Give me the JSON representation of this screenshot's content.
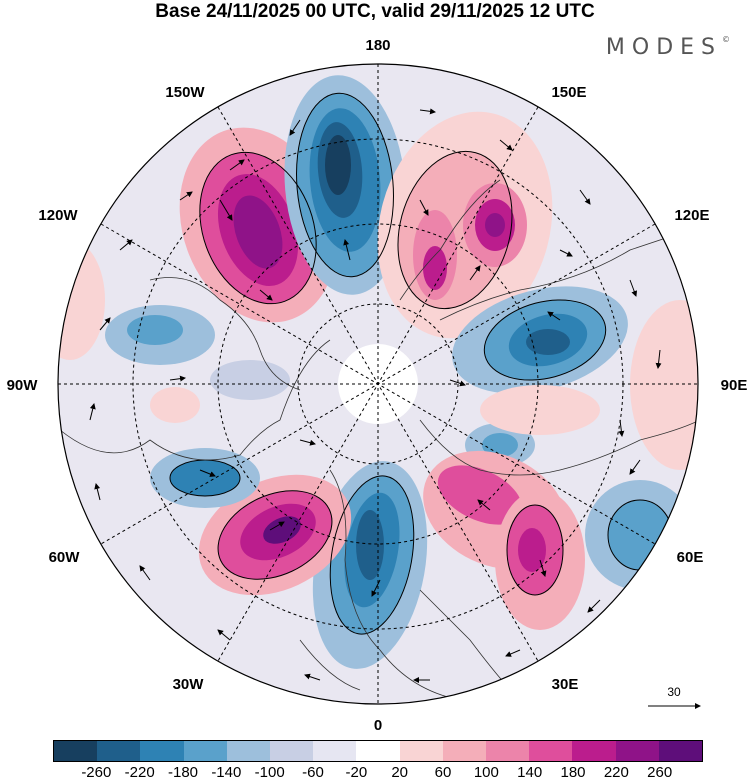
{
  "title": "Base 24/11/2025 00 UTC, valid 29/11/2025 12 UTC",
  "logo": "MODES",
  "logo_mark": "©",
  "lon_labels": {
    "l180": "180",
    "l150w": "150W",
    "l150e": "150E",
    "l120w": "120W",
    "l120e": "120E",
    "l90w": "90W",
    "l90e": "90E",
    "l60w": "60W",
    "l60e": "60E",
    "l30w": "30W",
    "l30e": "30E",
    "l0": "0"
  },
  "vector_scale": {
    "value": "30"
  },
  "colorbar": {
    "colors": [
      "#173f5f",
      "#1f5f8b",
      "#2e82b4",
      "#5aa1cb",
      "#9dbfdc",
      "#c8cfe4",
      "#e6e6f2",
      "#ffffff",
      "#f9d4d4",
      "#f4aeb9",
      "#ec84aa",
      "#df4e9c",
      "#bb1d8d",
      "#8f1388",
      "#5e0e7a"
    ],
    "ticks": [
      "-260",
      "-220",
      "-180",
      "-140",
      "-100",
      "-60",
      "-20",
      "20",
      "60",
      "100",
      "140",
      "180",
      "220",
      "260"
    ]
  },
  "chart_data": {
    "type": "polar-stereographic anomaly map",
    "projection": "north polar",
    "field_range": [
      -260,
      260
    ],
    "contour_levels": [
      -260,
      -220,
      -180,
      -140,
      -100,
      -60,
      -20,
      20,
      60,
      100,
      140,
      180,
      220,
      260
    ],
    "vector_reference": 30
  }
}
